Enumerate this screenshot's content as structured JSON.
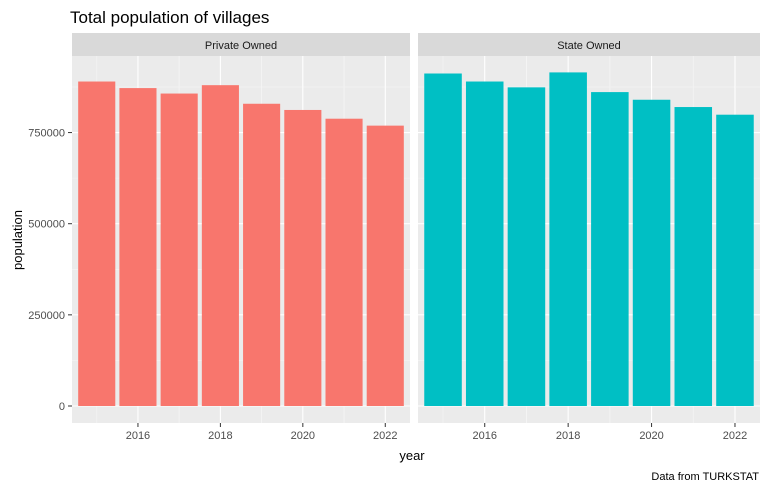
{
  "chart_data": {
    "type": "bar",
    "title": "Total population of villages",
    "xlabel": "year",
    "ylabel": "population",
    "caption": "Data from TURKSTAT",
    "x": [
      2015,
      2016,
      2017,
      2018,
      2019,
      2020,
      2021,
      2022
    ],
    "xticks": [
      2016,
      2018,
      2020,
      2022
    ],
    "yticks": [
      0,
      250000,
      500000,
      750000
    ],
    "ylim": [
      0,
      960000
    ],
    "grid": true,
    "legend": "none",
    "facets": [
      {
        "label": "Private Owned",
        "color": "#F8766D",
        "values": [
          890000,
          872000,
          857000,
          880000,
          829000,
          812000,
          788000,
          769000
        ]
      },
      {
        "label": "State Owned",
        "color": "#00BFC4",
        "values": [
          912000,
          890000,
          874000,
          915000,
          861000,
          840000,
          820000,
          799000
        ]
      }
    ]
  }
}
